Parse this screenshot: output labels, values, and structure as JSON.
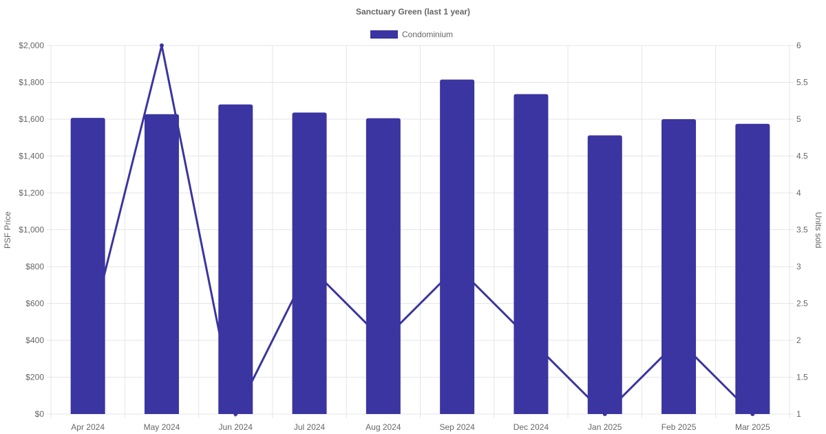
{
  "chart_data": {
    "type": "bar",
    "title": "Sanctuary Green (last 1 year)",
    "categories": [
      "Apr 2024",
      "May 2024",
      "Jun 2024",
      "Jul 2024",
      "Aug 2024",
      "Sep 2024",
      "Dec 2024",
      "Jan 2025",
      "Feb 2025",
      "Mar 2025"
    ],
    "series": [
      {
        "name": "Condominium",
        "kind": "bar",
        "axis": "left",
        "values": [
          1607,
          1627,
          1680,
          1636,
          1605,
          1815,
          1736,
          1512,
          1600,
          1575
        ]
      },
      {
        "kind": "line",
        "axis": "right",
        "values": [
          2,
          6,
          1,
          3,
          2,
          3,
          2,
          1,
          2,
          1
        ]
      }
    ],
    "y_left": {
      "label": "PSF Price",
      "range": [
        0,
        2000
      ],
      "ticks": [
        "$0",
        "$200",
        "$400",
        "$600",
        "$800",
        "$1,000",
        "$1,200",
        "$1,400",
        "$1,600",
        "$1,800",
        "$2,000"
      ]
    },
    "y_right": {
      "label": "Units sold",
      "range": [
        1,
        6
      ],
      "ticks": [
        "1",
        "1.5",
        "2",
        "2.5",
        "3",
        "3.5",
        "4",
        "4.5",
        "5",
        "5.5",
        "6"
      ]
    },
    "grid": true,
    "legend": "top-center",
    "colors": {
      "bar": "#3a35a0",
      "line": "#3a35a0",
      "grid": "#e5e5e5",
      "text": "#666666"
    }
  }
}
